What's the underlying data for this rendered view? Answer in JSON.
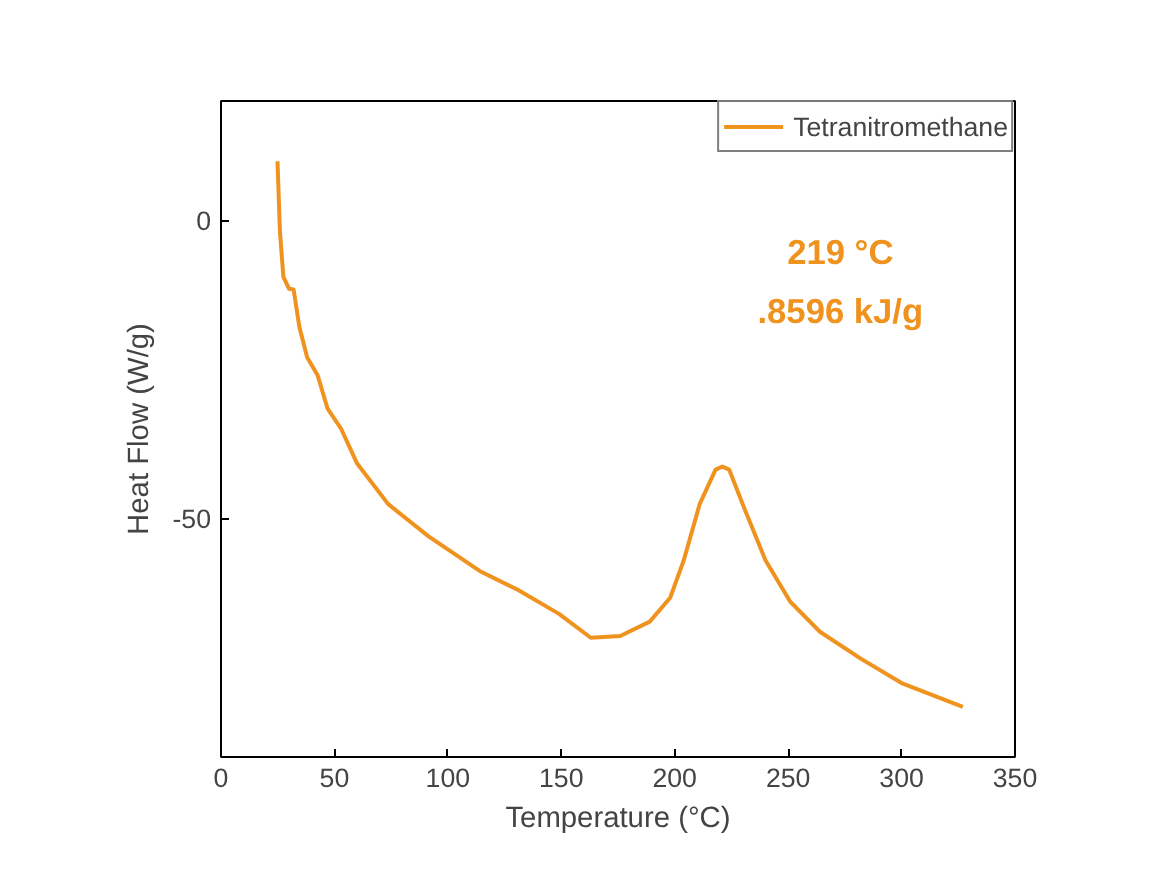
{
  "chart_data": {
    "type": "line",
    "xlabel": "Temperature (°C)",
    "ylabel": "Heat Flow (W/g)",
    "xlim": [
      0,
      350
    ],
    "ylim": [
      -90,
      20
    ],
    "xticks": [
      0,
      50,
      100,
      150,
      200,
      250,
      300,
      350
    ],
    "yticks": [
      -50,
      0
    ],
    "grid": false,
    "legend": "top right",
    "marker": "none",
    "line_style": "solid",
    "annotations": [
      "219 °C",
      ".8596 kJ/g"
    ],
    "series": [
      {
        "name": "Tetranitromethane",
        "color": "#f0921e",
        "x": [
          24.9,
          26,
          27.5,
          30,
          32,
          34.6,
          38,
          42.6,
          47,
          53,
          60,
          73.7,
          91.5,
          114,
          131,
          149,
          163,
          176,
          189,
          198,
          204,
          211,
          218,
          221,
          224,
          231,
          240,
          251,
          264,
          282,
          300,
          327
        ],
        "values": [
          9.9,
          -2,
          -9.5,
          -11.5,
          -11.6,
          -18,
          -23,
          -26,
          -31.6,
          -35,
          -40.8,
          -47.6,
          -53,
          -58.8,
          -62,
          -66,
          -70,
          -69.7,
          -67.3,
          -63.3,
          -57,
          -47.6,
          -41.8,
          -41.3,
          -41.8,
          -48.6,
          -57,
          -64,
          -69,
          -73.5,
          -77.6,
          -81.6
        ]
      }
    ]
  }
}
